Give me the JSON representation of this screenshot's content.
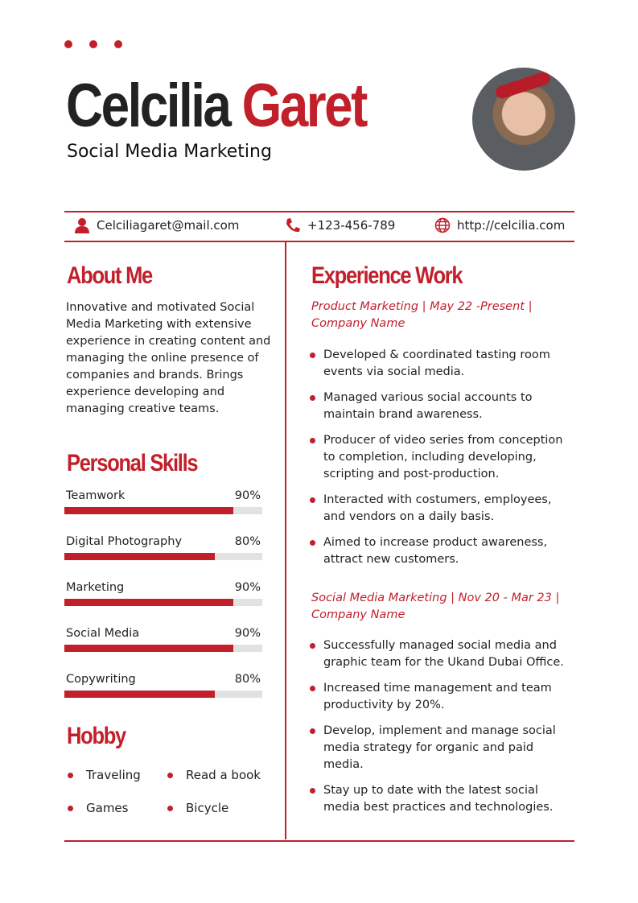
{
  "accent": "#c1202b",
  "header": {
    "first_name": "Celcilia",
    "last_name": "Garet",
    "title": "Social Media Marketing"
  },
  "contact": {
    "email": "Celciliagaret@mail.com",
    "phone": "+123-456-789",
    "website": "http://celcilia.com"
  },
  "about": {
    "heading": "About Me",
    "text": "Innovative and motivated Social Media Marketing with extensive experience in creating content and managing the online presence of companies and brands. Brings experience developing and managing creative teams."
  },
  "skills": {
    "heading": "Personal Skills",
    "items": [
      {
        "label": "Teamwork",
        "percent_label": "90%",
        "value": 90
      },
      {
        "label": "Digital Photography",
        "percent_label": "80%",
        "value": 80
      },
      {
        "label": "Marketing",
        "percent_label": "90%",
        "value": 90
      },
      {
        "label": "Social Media",
        "percent_label": "90%",
        "value": 90
      },
      {
        "label": "Copywriting",
        "percent_label": "80%",
        "value": 80
      }
    ]
  },
  "hobby": {
    "heading": "Hobby",
    "items": [
      "Traveling",
      "Read a book",
      "Games",
      "Bicycle"
    ]
  },
  "experience": {
    "heading": "Experience Work",
    "jobs": [
      {
        "title": "Product Marketing | May 22 -Present | Company Name",
        "bullets": [
          "Developed & coordinated tasting room events via social media.",
          "Managed various social accounts to maintain brand awareness.",
          "Producer of video series from conception to completion, including developing, scripting and post-production.",
          "Interacted with costumers, employees, and vendors on a daily basis.",
          "Aimed to increase product awareness, attract new customers."
        ]
      },
      {
        "title": "Social Media Marketing | Nov 20 - Mar 23 | Company Name",
        "bullets": [
          "Successfully managed social media and graphic team for the Ukand Dubai Office.",
          "Increased time management and team productivity by 20%.",
          "Develop, implement and manage social media strategy for organic and paid media.",
          "Stay up to date with the latest social media best practices and technologies."
        ]
      }
    ]
  }
}
